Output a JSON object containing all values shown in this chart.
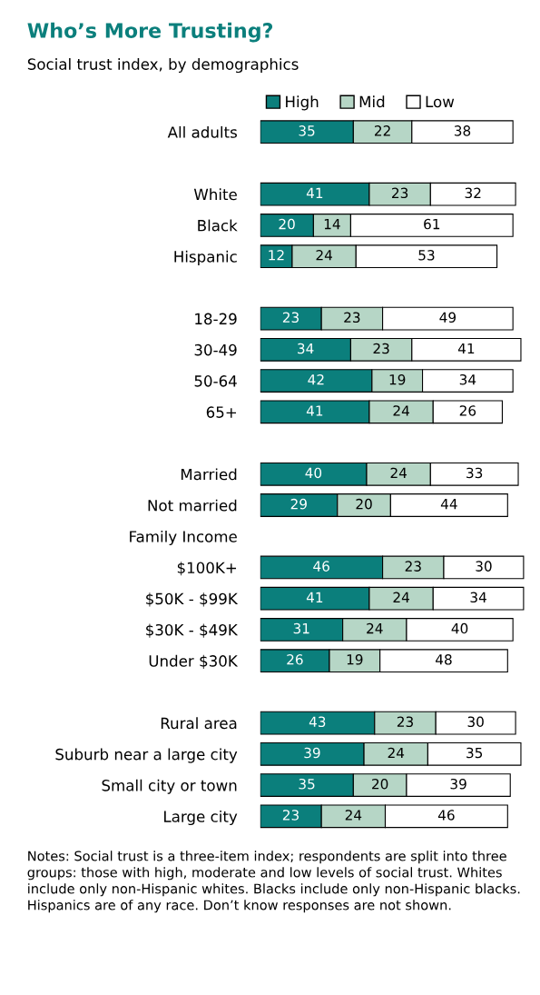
{
  "chart_data": {
    "type": "bar",
    "orientation": "horizontal",
    "stacked": true,
    "data_labels": true,
    "legend": "top",
    "grid": false,
    "tick_labels": "y",
    "title": "Who’s More Trusting?",
    "subtitle": "Social trust index, by demographics",
    "categories": [
      "All adults",
      null,
      "White",
      "Black",
      "Hispanic",
      null,
      "18-29",
      "30-49",
      "50-64",
      "65+",
      null,
      "Married",
      "Not married",
      "Family Income",
      "$100K+",
      "$50K - $99K",
      "$30K - $49K",
      "Under $30K",
      null,
      "Rural area",
      "Suburb near a large city",
      "Small city or town",
      "Large city"
    ],
    "series": [
      {
        "name": "High",
        "color": "#0b7f7c",
        "values": [
          35,
          null,
          41,
          20,
          12,
          null,
          23,
          34,
          42,
          41,
          null,
          40,
          29,
          null,
          46,
          41,
          31,
          26,
          null,
          43,
          39,
          35,
          23
        ]
      },
      {
        "name": "Mid",
        "color": "#b6d6c6",
        "values": [
          22,
          null,
          23,
          14,
          24,
          null,
          23,
          23,
          19,
          24,
          null,
          24,
          20,
          null,
          23,
          24,
          24,
          19,
          null,
          23,
          24,
          20,
          24
        ]
      },
      {
        "name": "Low",
        "color": "#ffffff",
        "values": [
          38,
          null,
          32,
          61,
          53,
          null,
          49,
          41,
          34,
          26,
          null,
          33,
          44,
          null,
          30,
          34,
          40,
          48,
          null,
          30,
          35,
          39,
          46
        ]
      }
    ],
    "annotations": [
      "Notes: Social trust is a three-item index; respondents are split into three groups: those with high, moderate and low levels of social trust. Whites include only non-Hispanic whites. Blacks include only non-Hispanic blacks. Hispanics are of any race. Don’t know responses are not shown."
    ]
  }
}
